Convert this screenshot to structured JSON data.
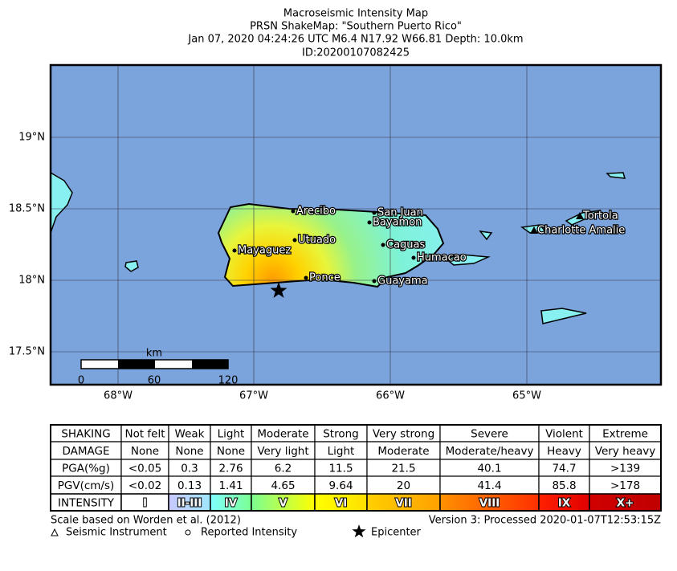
{
  "header": {
    "title": "Macroseismic Intensity Map",
    "subtitle": "PRSN ShakeMap: \"Southern Puerto Rico\"",
    "event": "Jan 07, 2020 04:24:26 UTC M6.4 N17.92 W66.81 Depth: 10.0km",
    "id": "ID:20200107082425"
  },
  "map": {
    "lat_labels": [
      "19°N",
      "18.5°N",
      "18°N",
      "17.5°N"
    ],
    "lon_labels": [
      "68°W",
      "67°W",
      "66°W",
      "65°W"
    ],
    "cities": [
      "Arecibo",
      "San Juan",
      "Bayamon",
      "Utuado",
      "Caguas",
      "Mayaguez",
      "Humacao",
      "Ponce",
      "Guayama",
      "Tortola",
      "Charlotte Amalie"
    ],
    "scale_bar": {
      "unit": "km",
      "ticks": [
        "0",
        "60",
        "120"
      ]
    }
  },
  "table": {
    "rows": [
      [
        "SHAKING",
        "Not felt",
        "Weak",
        "Light",
        "Moderate",
        "Strong",
        "Very strong",
        "Severe",
        "Violent",
        "Extreme"
      ],
      [
        "DAMAGE",
        "None",
        "None",
        "None",
        "Very light",
        "Light",
        "Moderate",
        "Moderate/heavy",
        "Heavy",
        "Very heavy"
      ],
      [
        "PGA(%g)",
        "<0.05",
        "0.3",
        "2.76",
        "6.2",
        "11.5",
        "21.5",
        "40.1",
        "74.7",
        ">139"
      ],
      [
        "PGV(cm/s)",
        "<0.02",
        "0.13",
        "1.41",
        "4.65",
        "9.64",
        "20",
        "41.4",
        "85.8",
        ">178"
      ],
      [
        "INTENSITY",
        "I",
        "II-III",
        "IV",
        "V",
        "VI",
        "VII",
        "VIII",
        "IX",
        "X+"
      ]
    ]
  },
  "footer": {
    "scale_note": "Scale based on Worden et al. (2012)",
    "version": "Version 3: Processed 2020-01-07T12:53:15Z",
    "legend": [
      "Seismic Instrument",
      "Reported Intensity",
      "Epicenter"
    ]
  }
}
